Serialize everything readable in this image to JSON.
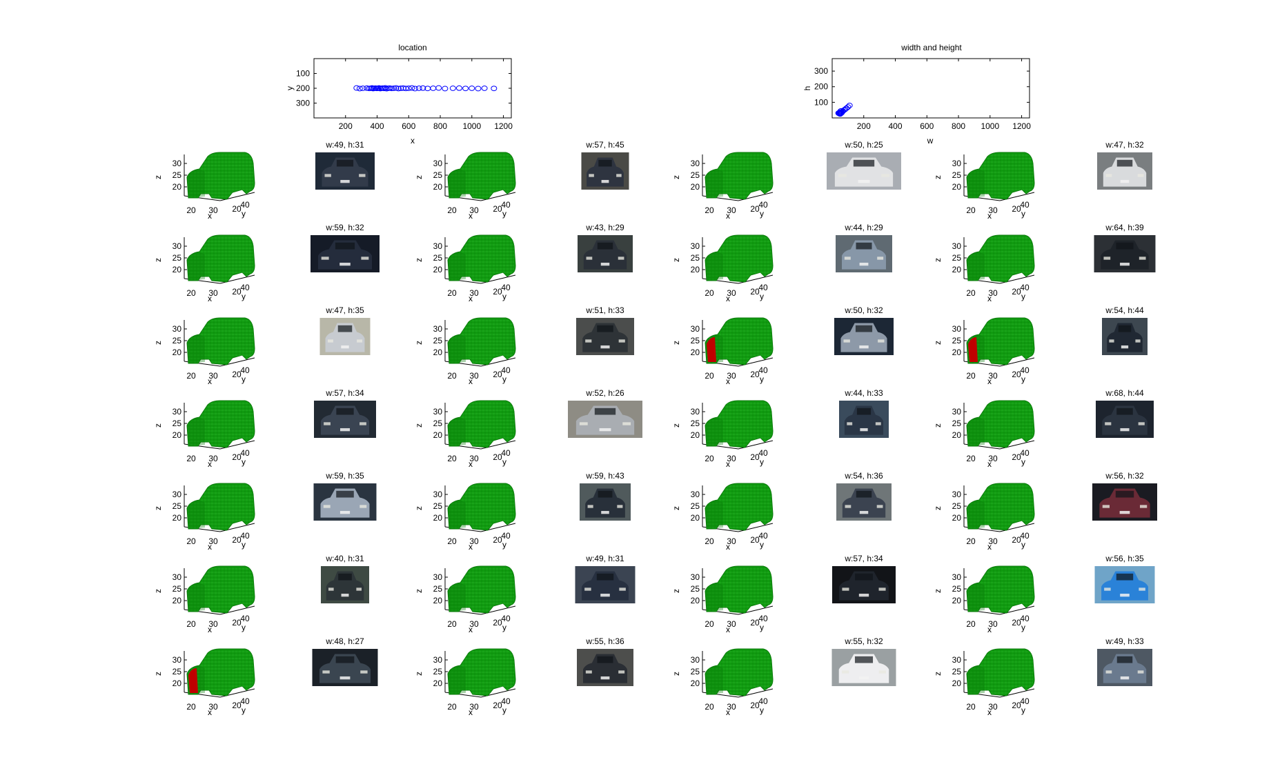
{
  "colors": {
    "marker": "#0000ff",
    "voxel_green": "#109a10",
    "voxel_green_dark": "#0a7a0a",
    "voxel_green_light": "#3fcf3f",
    "voxel_red": "#c00000",
    "axis": "#000000"
  },
  "chart_data": [
    {
      "type": "scatter",
      "title": "location",
      "xlabel": "x",
      "ylabel": "y",
      "xlim": [
        0,
        1250
      ],
      "ylim": [
        400,
        0
      ],
      "xticks": [
        "200",
        "400",
        "600",
        "800",
        "1000",
        "1200"
      ],
      "yticks": [
        "100",
        "200",
        "300"
      ],
      "marker": "circle-open",
      "x": [
        270,
        290,
        310,
        335,
        350,
        360,
        368,
        375,
        382,
        390,
        398,
        405,
        412,
        420,
        428,
        436,
        444,
        452,
        460,
        470,
        480,
        492,
        505,
        520,
        535,
        550,
        565,
        582,
        600,
        620,
        640,
        665,
        690,
        720,
        755,
        790,
        830,
        880,
        920,
        960,
        1000,
        1040,
        1080,
        1140
      ],
      "y": [
        198,
        202,
        200,
        199,
        201,
        200,
        198,
        202,
        200,
        199,
        201,
        200,
        198,
        202,
        200,
        199,
        201,
        197,
        203,
        200,
        199,
        201,
        200,
        198,
        202,
        200,
        199,
        201,
        200,
        198,
        202,
        200,
        199,
        201,
        200,
        198,
        202,
        200,
        199,
        201,
        200,
        202,
        200,
        201
      ]
    },
    {
      "type": "scatter",
      "title": "width and height",
      "xlabel": "w",
      "ylabel": "h",
      "xlim": [
        0,
        1250
      ],
      "ylim": [
        0,
        380
      ],
      "xticks": [
        "200",
        "400",
        "600",
        "800",
        "1000",
        "1200"
      ],
      "yticks": [
        "100",
        "200",
        "300"
      ],
      "marker": "circle-open",
      "x": [
        40,
        43,
        44,
        47,
        47,
        48,
        49,
        49,
        50,
        50,
        51,
        52,
        54,
        54,
        55,
        55,
        56,
        56,
        57,
        57,
        57,
        59,
        59,
        64,
        68,
        75,
        82,
        90,
        100,
        110
      ],
      "y": [
        31,
        29,
        33,
        35,
        32,
        27,
        31,
        33,
        25,
        32,
        33,
        26,
        44,
        36,
        36,
        32,
        32,
        35,
        45,
        34,
        34,
        32,
        35,
        39,
        44,
        50,
        55,
        62,
        70,
        80
      ]
    }
  ],
  "voxel_plots": {
    "z_ticks": [
      "30",
      "25",
      "20"
    ],
    "x_ticks": [
      "20",
      "30"
    ],
    "y_ticks": [
      "20",
      "40"
    ],
    "xlabel": "x",
    "ylabel": "y",
    "zlabel": "z",
    "red_cells": [
      "2-2",
      "2-3",
      "6-0"
    ]
  },
  "thumbnails": [
    {
      "label": "w:49, h:31",
      "bg": "#1f2a38",
      "w": 86,
      "h": 54,
      "body": "#323b4a"
    },
    {
      "label": "w:57, h:45",
      "bg": "#4a4a46",
      "w": 69,
      "h": 54,
      "body": "#2e3440"
    },
    {
      "label": "w:50, h:25",
      "bg": "#a9adb3",
      "w": 108,
      "h": 54,
      "body": "#e1e2e4"
    },
    {
      "label": "w:47, h:32",
      "bg": "#7a7e80",
      "w": 80,
      "h": 54,
      "body": "#d9dbdd"
    },
    {
      "label": "w:59, h:32",
      "bg": "#151b27",
      "w": 100,
      "h": 54,
      "body": "#242c3c"
    },
    {
      "label": "w:43, h:29",
      "bg": "#39403f",
      "w": 80,
      "h": 54,
      "body": "#2a3038"
    },
    {
      "label": "w:44, h:29",
      "bg": "#5f6a72",
      "w": 82,
      "h": 54,
      "body": "#8797a8"
    },
    {
      "label": "w:64, h:39",
      "bg": "#2c3035",
      "w": 89,
      "h": 54,
      "body": "#1e2329"
    },
    {
      "label": "w:47, h:35",
      "bg": "#b8b7a8",
      "w": 73,
      "h": 54,
      "body": "#c7cbd0"
    },
    {
      "label": "w:51, h:33",
      "bg": "#4b4d4c",
      "w": 84,
      "h": 54,
      "body": "#2e3337"
    },
    {
      "label": "w:50, h:32",
      "bg": "#1c2735",
      "w": 86,
      "h": 54,
      "body": "#8d99a8"
    },
    {
      "label": "w:54, h:44",
      "bg": "#3d4750",
      "w": 66,
      "h": 54,
      "body": "#202833"
    },
    {
      "label": "w:57, h:34",
      "bg": "#222a33",
      "w": 90,
      "h": 54,
      "body": "#3a4452"
    },
    {
      "label": "w:52, h:26",
      "bg": "#8e8c84",
      "w": 108,
      "h": 54,
      "body": "#a9adb2"
    },
    {
      "label": "w:44, h:33",
      "bg": "#3a4b5c",
      "w": 72,
      "h": 54,
      "body": "#2a3646"
    },
    {
      "label": "w:68, h:44",
      "bg": "#1d242e",
      "w": 84,
      "h": 54,
      "body": "#2b3440"
    },
    {
      "label": "w:59, h:35",
      "bg": "#2a3440",
      "w": 91,
      "h": 54,
      "body": "#9aa6b5"
    },
    {
      "label": "w:59, h:43",
      "bg": "#505a5c",
      "w": 74,
      "h": 54,
      "body": "#28303a"
    },
    {
      "label": "w:54, h:36",
      "bg": "#6f7678",
      "w": 80,
      "h": 54,
      "body": "#3b4350"
    },
    {
      "label": "w:56, h:32",
      "bg": "#1a1b22",
      "w": 94,
      "h": 54,
      "body": "#6a2a36"
    },
    {
      "label": "w:40, h:31",
      "bg": "#3e4a43",
      "w": 70,
      "h": 54,
      "body": "#2d3538"
    },
    {
      "label": "w:49, h:31",
      "bg": "#3b4452",
      "w": 87,
      "h": 54,
      "body": "#273040"
    },
    {
      "label": "w:57, h:34",
      "bg": "#121418",
      "w": 92,
      "h": 54,
      "body": "#1f242c"
    },
    {
      "label": "w:56, h:35",
      "bg": "#6fa4c8",
      "w": 87,
      "h": 54,
      "body": "#2a82d8"
    },
    {
      "label": "w:48, h:27",
      "bg": "#1b2128",
      "w": 95,
      "h": 54,
      "body": "#3a4550"
    },
    {
      "label": "w:55, h:36",
      "bg": "#4d4e4c",
      "w": 82,
      "h": 54,
      "body": "#2a2e34"
    },
    {
      "label": "w:55, h:32",
      "bg": "#9aa0a2",
      "w": 93,
      "h": 54,
      "body": "#eeeef0"
    },
    {
      "label": "w:49, h:33",
      "bg": "#4e5863",
      "w": 80,
      "h": 54,
      "body": "#6a7a8e"
    }
  ]
}
